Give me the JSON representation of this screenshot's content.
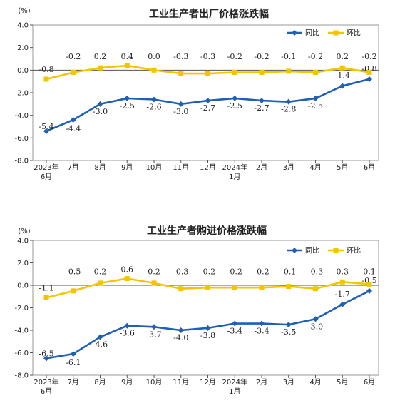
{
  "colors": {
    "yoy": "#1f5fb4",
    "mom": "#f5c400",
    "axis": "#555555"
  },
  "chart_data": [
    {
      "type": "line",
      "title": "工业生产者出厂价格涨跌幅",
      "unit": "(%)",
      "ylim": [
        -8.0,
        4.0
      ],
      "yticks": [
        4.0,
        2.0,
        0.0,
        -2.0,
        -4.0,
        -6.0,
        -8.0
      ],
      "ytick_labels": [
        "4.0",
        "2.0",
        "0.0",
        "-2.0",
        "-4.0",
        "-6.0",
        "-8.0"
      ],
      "categories": [
        "2023年6月",
        "7月",
        "8月",
        "9月",
        "10月",
        "11月",
        "12月",
        "2024年1月",
        "2月",
        "3月",
        "4月",
        "5月",
        "6月"
      ],
      "xtick_line1": [
        "2023年",
        "7月",
        "8月",
        "9月",
        "10月",
        "11月",
        "12月",
        "2024年",
        "2月",
        "3月",
        "4月",
        "5月",
        "6月"
      ],
      "xtick_line2": [
        "6月",
        "",
        "",
        "",
        "",
        "",
        "",
        "1月",
        "",
        "",
        "",
        "",
        ""
      ],
      "legend_placement": "top-right",
      "series": [
        {
          "name": "同比",
          "values": [
            -5.4,
            -4.4,
            -3.0,
            -2.5,
            -2.6,
            -3.0,
            -2.7,
            -2.5,
            -2.7,
            -2.8,
            -2.5,
            -1.4,
            -0.8
          ],
          "labels": [
            "-5.4",
            "-4.4",
            "-3.0",
            "-2.5",
            "-2.6",
            "-3.0",
            "-2.7",
            "-2.5",
            "-2.7",
            "-2.8",
            "-2.5",
            "-1.4",
            "-0.8"
          ]
        },
        {
          "name": "环比",
          "values": [
            -0.8,
            -0.2,
            0.2,
            0.4,
            0.0,
            -0.3,
            -0.3,
            -0.2,
            -0.2,
            -0.1,
            -0.2,
            0.2,
            -0.2
          ],
          "labels": [
            "-0.8",
            "-0.2",
            "0.2",
            "0.4",
            "0.0",
            "-0.3",
            "-0.3",
            "-0.2",
            "-0.2",
            "-0.1",
            "-0.2",
            "0.2",
            "-0.2"
          ]
        }
      ]
    },
    {
      "type": "line",
      "title": "工业生产者购进价格涨跌幅",
      "unit": "(%)",
      "ylim": [
        -8.0,
        4.0
      ],
      "yticks": [
        4.0,
        2.0,
        0.0,
        -2.0,
        -4.0,
        -6.0,
        -8.0
      ],
      "ytick_labels": [
        "4.0",
        "2.0",
        "0.0",
        "-2.0",
        "-4.0",
        "-6.0",
        "-8.0"
      ],
      "categories": [
        "2023年6月",
        "7月",
        "8月",
        "9月",
        "10月",
        "11月",
        "12月",
        "2024年1月",
        "2月",
        "3月",
        "4月",
        "5月",
        "6月"
      ],
      "xtick_line1": [
        "2023年",
        "7月",
        "8月",
        "9月",
        "10月",
        "11月",
        "12月",
        "2024年",
        "2月",
        "3月",
        "4月",
        "5月",
        "6月"
      ],
      "xtick_line2": [
        "6月",
        "",
        "",
        "",
        "",
        "",
        "",
        "1月",
        "",
        "",
        "",
        "",
        ""
      ],
      "legend_placement": "top-right",
      "series": [
        {
          "name": "同比",
          "values": [
            -6.5,
            -6.1,
            -4.6,
            -3.6,
            -3.7,
            -4.0,
            -3.8,
            -3.4,
            -3.4,
            -3.5,
            -3.0,
            -1.7,
            -0.5
          ],
          "labels": [
            "-6.5",
            "-6.1",
            "-4.6",
            "-3.6",
            "-3.7",
            "-4.0",
            "-3.8",
            "-3.4",
            "-3.4",
            "-3.5",
            "-3.0",
            "-1.7",
            "-0.5"
          ]
        },
        {
          "name": "环比",
          "values": [
            -1.1,
            -0.5,
            0.2,
            0.6,
            0.2,
            -0.3,
            -0.2,
            -0.2,
            -0.2,
            -0.1,
            -0.3,
            0.3,
            0.1
          ],
          "labels": [
            "-1.1",
            "-0.5",
            "0.2",
            "0.6",
            "0.2",
            "-0.3",
            "-0.2",
            "-0.2",
            "-0.2",
            "-0.1",
            "-0.3",
            "0.3",
            "0.1"
          ]
        }
      ]
    }
  ]
}
